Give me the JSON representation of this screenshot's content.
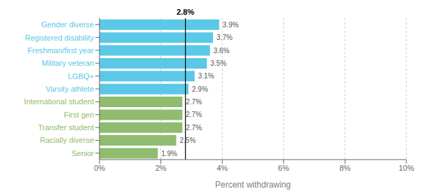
{
  "chart_data": {
    "type": "bar",
    "orientation": "horizontal",
    "categories": [
      "Senior",
      "Racially diverse",
      "Transfer student",
      "First gen",
      "International student",
      "Varsity athlete",
      "LGBQ+",
      "Military veteran",
      "Freshman/first year",
      "Registered disability",
      "Gender diverse"
    ],
    "values": [
      1.9,
      2.5,
      2.7,
      2.7,
      2.7,
      2.9,
      3.1,
      3.5,
      3.6,
      3.7,
      3.9
    ],
    "value_labels": [
      "1.9%",
      "2.5%",
      "2.7%",
      "2.7%",
      "2.7%",
      "2.9%",
      "3.1%",
      "3.5%",
      "3.6%",
      "3.7%",
      "3.9%"
    ],
    "data_labels": true,
    "colors": [
      "#8fbc6e",
      "#8fbc6e",
      "#8fbc6e",
      "#8fbc6e",
      "#8fbc6e",
      "#5bc8e8",
      "#5bc8e8",
      "#5bc8e8",
      "#5bc8e8",
      "#5bc8e8",
      "#5bc8e8"
    ],
    "x_label": "Percent withdrawing",
    "xlim": [
      0,
      10
    ],
    "xticks": [
      {
        "value": 0,
        "label": "0%"
      },
      {
        "value": 2,
        "label": "2%"
      },
      {
        "value": 4,
        "label": "4%"
      },
      {
        "value": 6,
        "label": "6%"
      },
      {
        "value": 8,
        "label": "8%"
      },
      {
        "value": 10,
        "label": "10%"
      }
    ],
    "annotations": [
      {
        "x": 2.8,
        "text": "2.8%"
      }
    ],
    "grid": true
  }
}
